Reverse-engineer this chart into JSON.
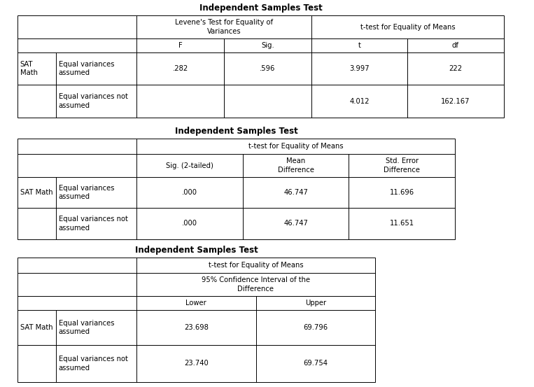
{
  "background_color": "#ffffff",
  "table1": {
    "title": "Independent Samples Test",
    "col_headers": [
      "F",
      "Sig.",
      "t",
      "df"
    ],
    "rows": [
      {
        "label2": "Equal variances\nassumed",
        "values": [
          ".282",
          ".596",
          "3.997",
          "222"
        ]
      },
      {
        "label2": "Equal variances not\nassumed",
        "values": [
          "",
          "",
          "4.012",
          "162.167"
        ]
      }
    ],
    "label1": "SAT\nMath"
  },
  "table2": {
    "title": "Independent Samples Test",
    "col_headers": [
      "Sig. (2-tailed)",
      "Mean\nDifference",
      "Std. Error\nDifference"
    ],
    "rows": [
      {
        "label2": "Equal variances\nassumed",
        "values": [
          ".000",
          "46.747",
          "11.696"
        ]
      },
      {
        "label2": "Equal variances not\nassumed",
        "values": [
          ".000",
          "46.747",
          "11.651"
        ]
      }
    ],
    "label1": "SAT Math"
  },
  "table3": {
    "title": "Independent Samples Test",
    "col_headers": [
      "Lower",
      "Upper"
    ],
    "rows": [
      {
        "label2": "Equal variances\nassumed",
        "values": [
          "23.698",
          "69.796"
        ]
      },
      {
        "label2": "Equal variances not\nassumed",
        "values": [
          "23.740",
          "69.754"
        ]
      }
    ],
    "label1": "SAT Math"
  }
}
